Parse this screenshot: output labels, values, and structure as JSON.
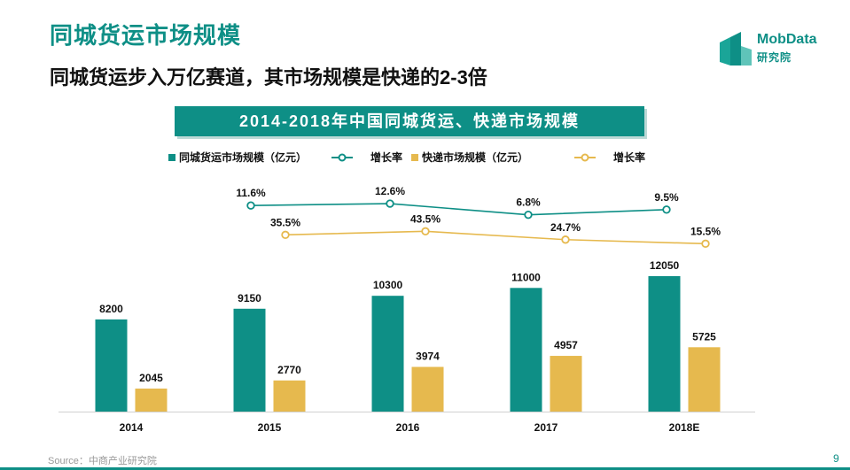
{
  "header": {
    "title": "同城货运市场规模",
    "subtitle": "同城货运步入万亿赛道，其市场规模是快递的2-3倍"
  },
  "logo": {
    "name": "MobData",
    "sub": "研究院",
    "icon": "building-blocks-icon"
  },
  "colors": {
    "teal": "#0e8f86",
    "gold": "#e6b94e"
  },
  "footer": {
    "source": "Source：中商产业研究院",
    "page": "9"
  },
  "chart_data": {
    "type": "bar",
    "title": "2014-2018年中国同城货运、快递市场规模",
    "legend_position": "top",
    "grid": false,
    "categories": [
      "2014",
      "2015",
      "2016",
      "2017",
      "2018E"
    ],
    "series": [
      {
        "name": "同城货运市场规模（亿元）",
        "type": "bar",
        "color": "#0e8f86",
        "values": [
          8200,
          9150,
          10300,
          11000,
          12050
        ]
      },
      {
        "name": "快递市场规模（亿元）",
        "type": "bar",
        "color": "#e6b94e",
        "values": [
          2045,
          2770,
          3974,
          4957,
          5725
        ]
      }
    ],
    "growth": [
      {
        "name": "增长率",
        "type": "line",
        "color": "#0e8f86",
        "categories": [
          "2015",
          "2016",
          "2017",
          "2018E"
        ],
        "values": [
          11.6,
          12.6,
          6.8,
          9.5
        ],
        "labels": [
          "11.6%",
          "12.6%",
          "6.8%",
          "9.5%"
        ]
      },
      {
        "name": "增长率",
        "type": "line",
        "color": "#e6b94e",
        "categories": [
          "2015",
          "2016",
          "2017",
          "2018E"
        ],
        "values": [
          35.5,
          43.5,
          24.7,
          15.5
        ],
        "labels": [
          "35.5%",
          "43.5%",
          "24.7%",
          "15.5%"
        ]
      }
    ]
  }
}
